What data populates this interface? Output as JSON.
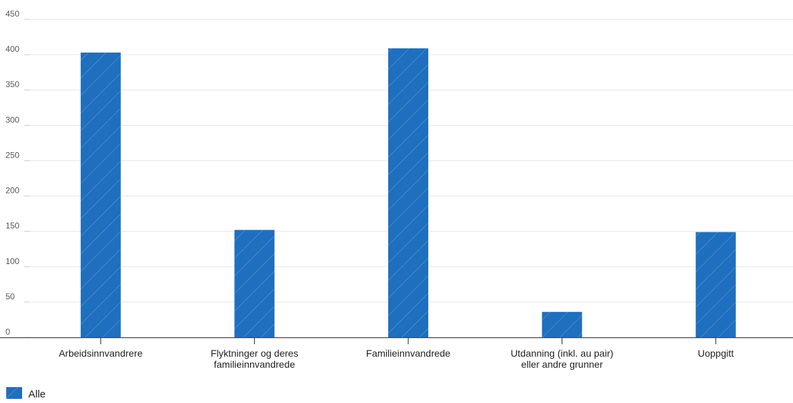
{
  "chart_data": {
    "type": "bar",
    "title": "",
    "xlabel": "",
    "ylabel": "",
    "ylim": [
      0,
      450
    ],
    "yticks": [
      0,
      50,
      100,
      150,
      200,
      250,
      300,
      350,
      400,
      450
    ],
    "grid": true,
    "legend_position": "bottom-left",
    "categories": [
      [
        "Arbeidsinnvandrere"
      ],
      [
        "Flyktninger og deres",
        "familieinnvandrede"
      ],
      [
        "Familieinnvandrede"
      ],
      [
        "Utdanning (inkl. au pair)",
        "eller andre grunner"
      ],
      [
        "Uoppgitt"
      ]
    ],
    "series": [
      {
        "name": "Alle",
        "color": "#1f6fbf",
        "values": [
          403,
          152,
          409,
          36,
          149
        ]
      }
    ]
  }
}
